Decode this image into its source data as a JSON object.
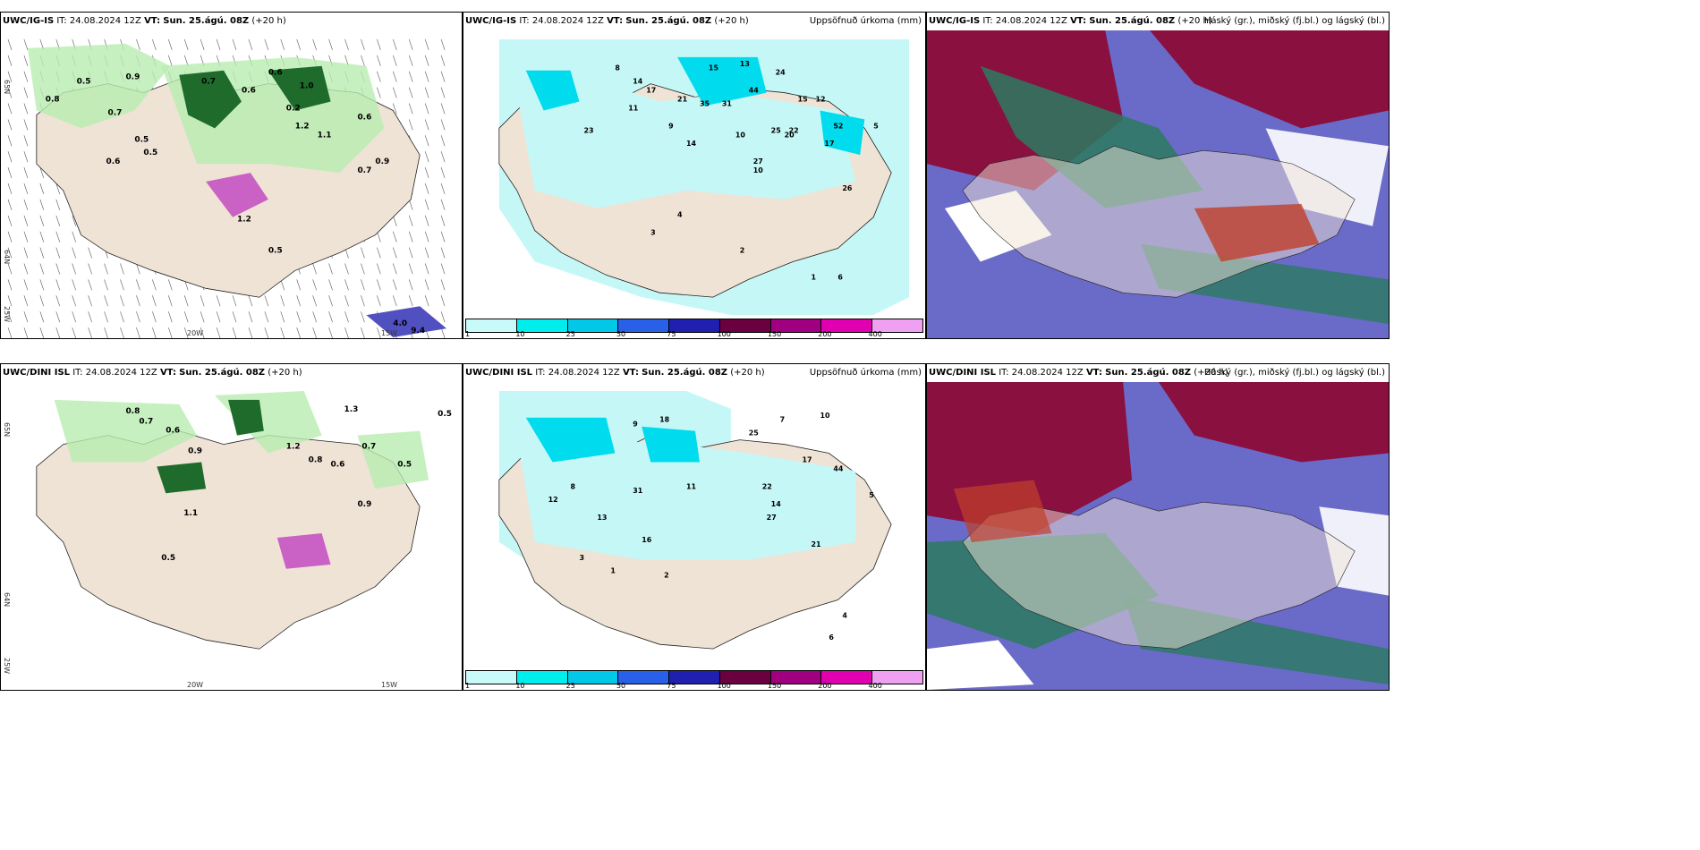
{
  "panels": [
    {
      "model": "UWC/IG-IS",
      "it_label": "IT:",
      "it": "24.08.2024 12Z",
      "vt_label": "VT:",
      "vt": "Sun. 25.ágú. 08Z",
      "lead": "(+20 h)",
      "right_title": ""
    },
    {
      "model": "UWC/IG-IS",
      "it_label": "IT:",
      "it": "24.08.2024 12Z",
      "vt_label": "VT:",
      "vt": "Sun. 25.ágú. 08Z",
      "lead": "(+20 h)",
      "right_title": "Uppsöfnuð úrkoma (mm)"
    },
    {
      "model": "UWC/IG-IS",
      "it_label": "IT:",
      "it": "24.08.2024 12Z",
      "vt_label": "VT:",
      "vt": "Sun. 25.ágú. 08Z",
      "lead": "(+20 h)",
      "right_title": "Háský (gr.), miðský (fj.bl.) og lágský (bl.)"
    },
    {
      "model": "UWC/DINI ISL",
      "it_label": "IT:",
      "it": "24.08.2024 12Z",
      "vt_label": "VT:",
      "vt": "Sun. 25.ágú. 08Z",
      "lead": "(+20 h)",
      "right_title": ""
    },
    {
      "model": "UWC/DINI ISL",
      "it_label": "IT:",
      "it": "24.08.2024 12Z",
      "vt_label": "VT:",
      "vt": "Sun. 25.ágú. 08Z",
      "lead": "(+20 h)",
      "right_title": "Uppsöfnuð úrkoma (mm)"
    },
    {
      "model": "UWC/DINI ISL",
      "it_label": "IT:",
      "it": "24.08.2024 12Z",
      "vt_label": "VT:",
      "vt": "Sun. 25.ágú. 08Z",
      "lead": "(+20 h)",
      "right_title": "Háský (gr.), miðský (fj.bl.) og lágský (bl.)"
    }
  ],
  "axis_labels": {
    "lat_top": "65N",
    "lat_bottom": "64N",
    "lon_left": "25W",
    "lon_mid": "20W",
    "lon_right": "15W"
  },
  "colorbar": {
    "ticks": [
      "1",
      "10",
      "25",
      "50",
      "75",
      "100",
      "150",
      "200",
      "400"
    ],
    "colors": [
      "#c8fafa",
      "#00eded",
      "#00c8e6",
      "#2860e8",
      "#2020b0",
      "#6a0040",
      "#a00080",
      "#e000b0",
      "#f0a0f0"
    ]
  },
  "colors": {
    "land": "#efe3d6",
    "sea": "#c6f7f7",
    "green_light": "#b8ecb0",
    "green_dark": "#1e6b2c",
    "magenta": "#c040c0",
    "cloud_high": "#2a7a60",
    "cloud_mid": "#8a1040",
    "cloud_low": "#5050c0"
  },
  "precip_top": {
    "labels_left": [
      "0.8",
      "0.9",
      "0.7",
      "0.6",
      "1.0",
      "0.5",
      "0.2",
      "1.1",
      "0.9",
      "0.6",
      "0.5",
      "0.7",
      "1.2",
      "0.5",
      "0.6",
      "0.7",
      "0.6",
      "0.5",
      "1.2",
      "4.0",
      "9.4"
    ],
    "labels_mid": [
      "8",
      "14",
      "17",
      "15",
      "13",
      "24",
      "11",
      "23",
      "21",
      "35",
      "31",
      "44",
      "15",
      "12",
      "52",
      "9",
      "10",
      "26",
      "14",
      "20",
      "25",
      "17",
      "27",
      "22",
      "5",
      "3",
      "10",
      "4",
      "2",
      "1",
      "6"
    ]
  },
  "precip_bottom": {
    "labels_left": [
      "0.5",
      "1.3",
      "0.8",
      "0.7",
      "0.6",
      "1.2",
      "0.9",
      "0.5",
      "0.8",
      "1.1",
      "0.5",
      "0.6",
      "0.9",
      "0.7"
    ],
    "labels_mid": [
      "9",
      "18",
      "25",
      "10",
      "7",
      "17",
      "44",
      "31",
      "11",
      "22",
      "14",
      "27",
      "13",
      "8",
      "5",
      "3",
      "1",
      "2",
      "4",
      "6",
      "21",
      "16",
      "12"
    ]
  }
}
